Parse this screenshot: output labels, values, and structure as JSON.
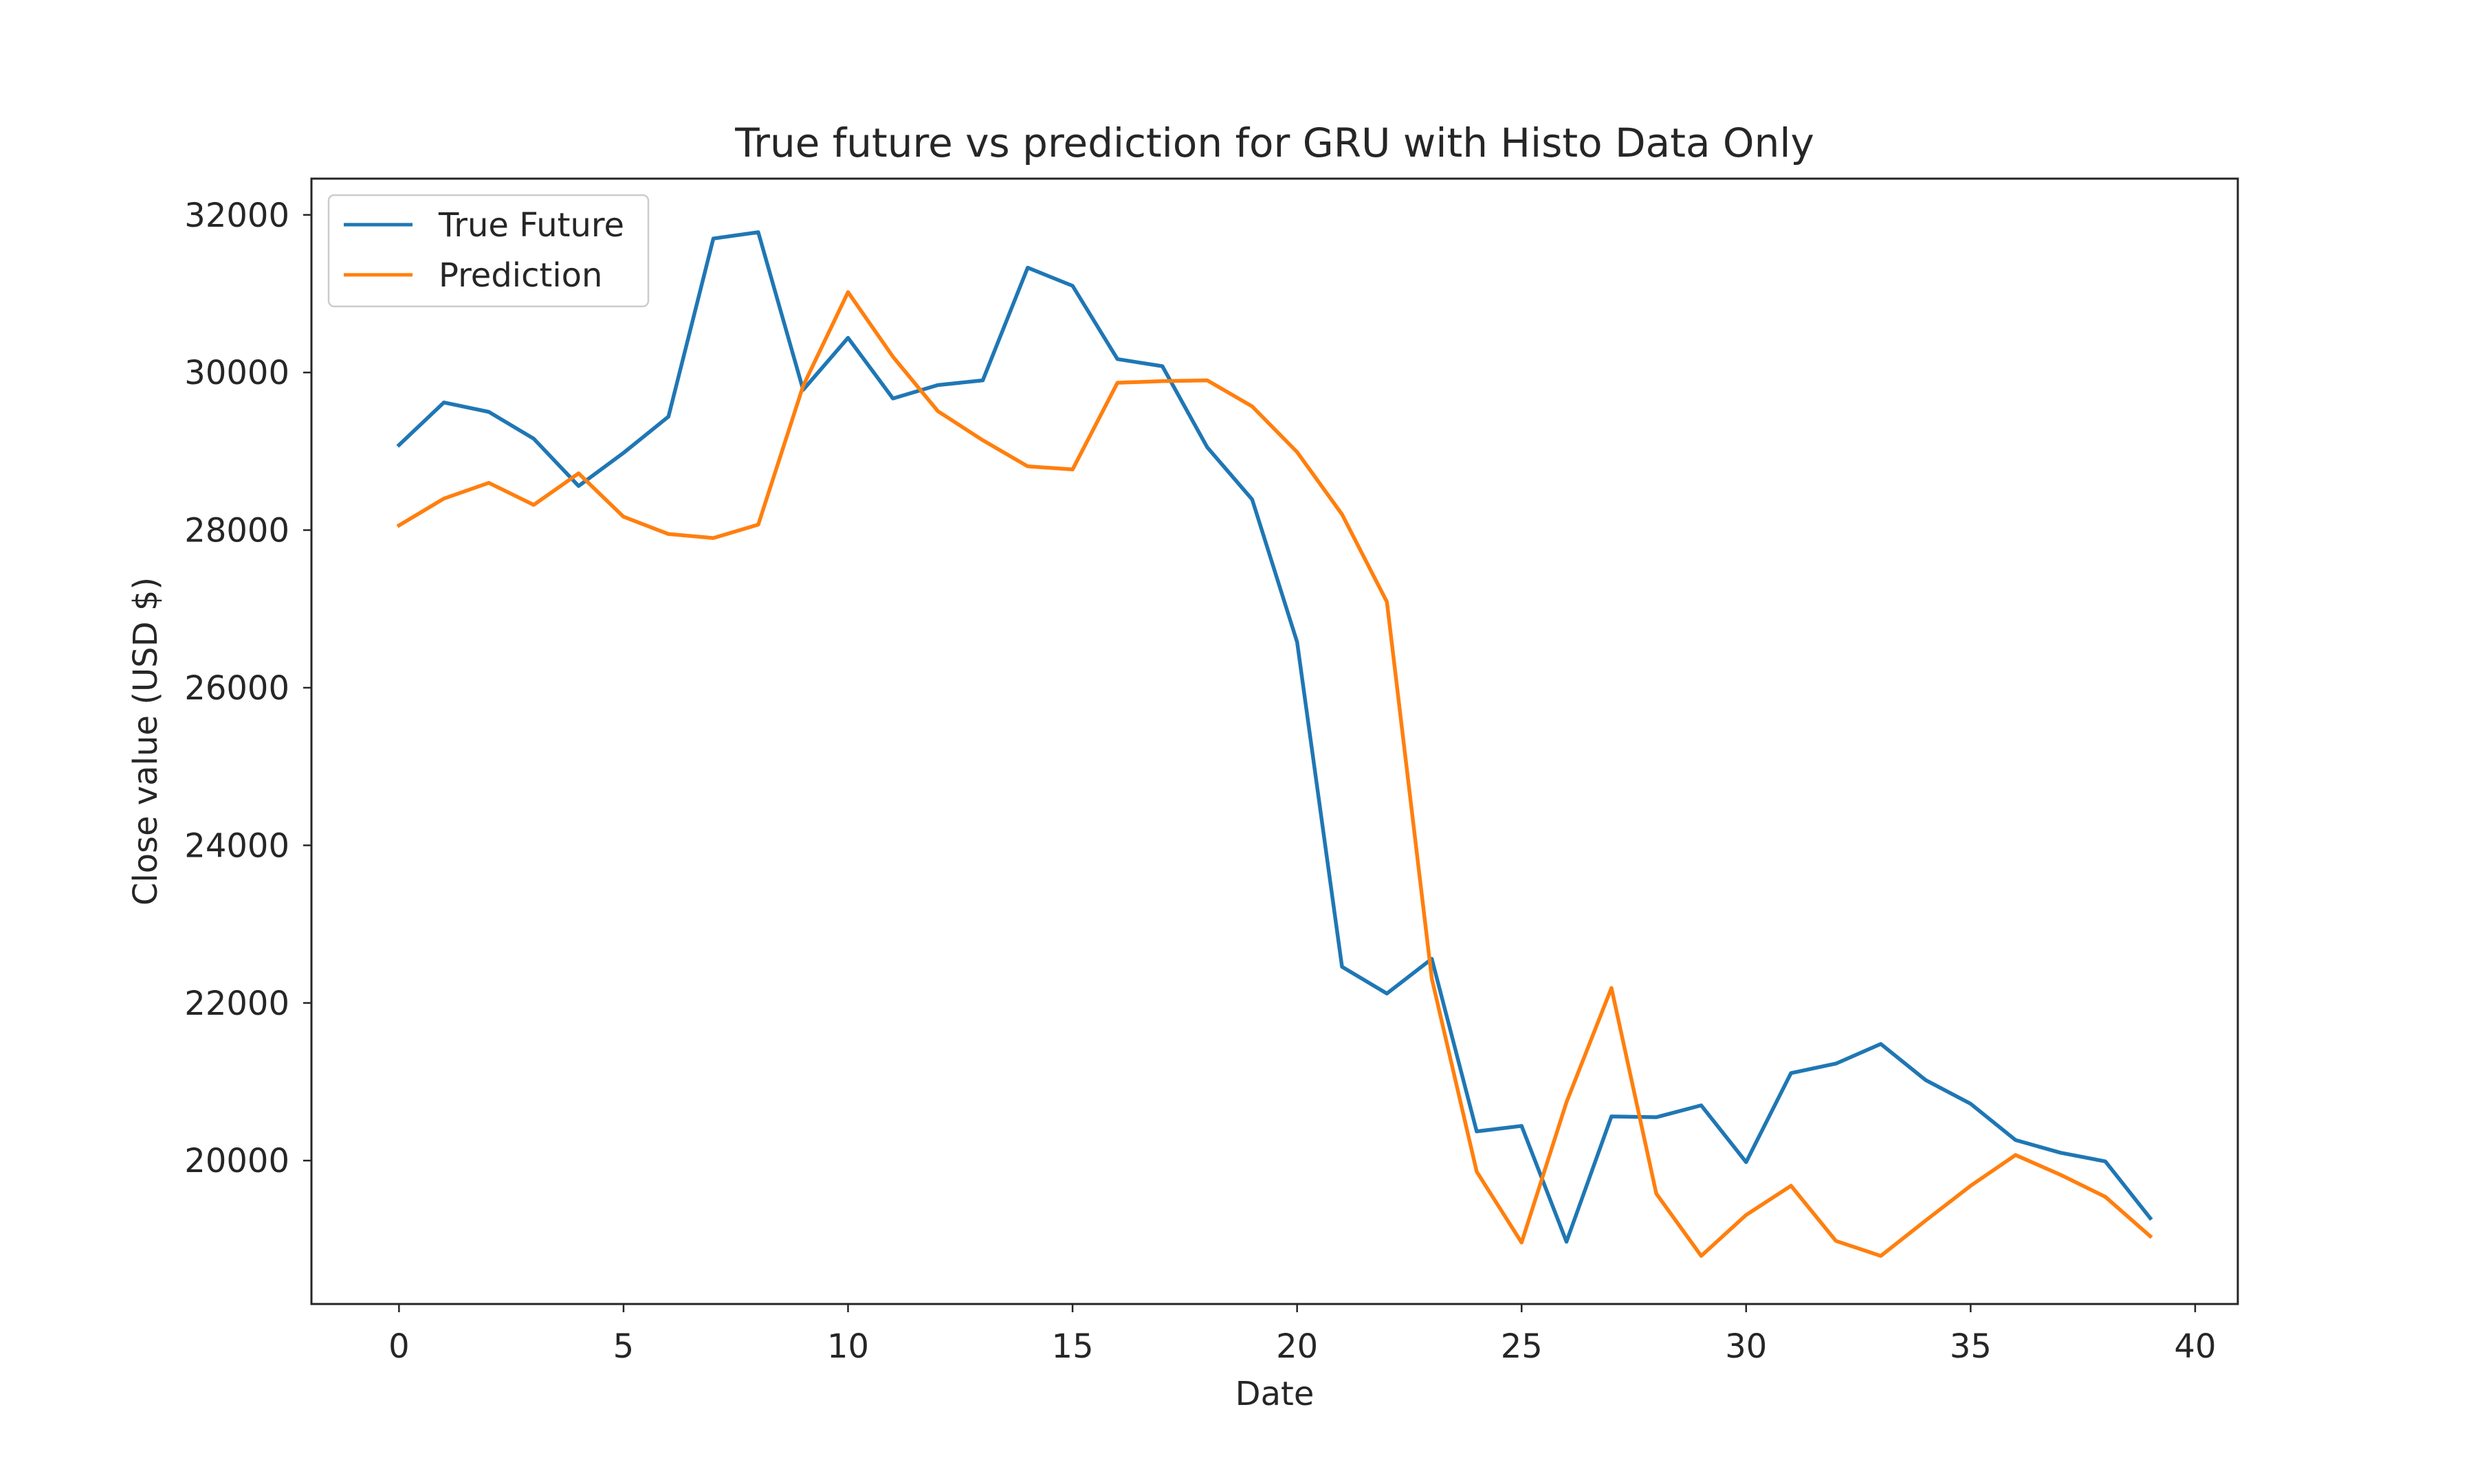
{
  "chart_data": {
    "type": "line",
    "title": "True future vs prediction for GRU with Histo Data Only",
    "xlabel": "Date",
    "ylabel": "Close value (USD $)",
    "xlim": [
      -1.95,
      40.95
    ],
    "ylim": [
      18180,
      32460
    ],
    "xticks": [
      0,
      5,
      10,
      15,
      20,
      25,
      30,
      35,
      40
    ],
    "yticks": [
      20000,
      22000,
      24000,
      26000,
      28000,
      30000,
      32000
    ],
    "grid": false,
    "legend_position": "upper left",
    "x": [
      0,
      1,
      2,
      3,
      4,
      5,
      6,
      7,
      8,
      9,
      10,
      11,
      12,
      13,
      14,
      15,
      16,
      17,
      18,
      19,
      20,
      21,
      22,
      23,
      24,
      25,
      26,
      27,
      28,
      29,
      30,
      31,
      32,
      33,
      34,
      35,
      36,
      37,
      38,
      39
    ],
    "series": [
      {
        "name": "True Future",
        "color": "#1f77b4",
        "values": [
          29080,
          29620,
          29500,
          29160,
          28560,
          28980,
          29440,
          31700,
          31780,
          29780,
          30440,
          29670,
          29840,
          29900,
          31330,
          31100,
          30170,
          30080,
          29050,
          28390,
          26580,
          22460,
          22120,
          22560,
          20370,
          20440,
          18970,
          20560,
          20550,
          20700,
          19980,
          21110,
          21230,
          21480,
          21020,
          20720,
          20260,
          20100,
          19990,
          19270
        ]
      },
      {
        "name": "Prediction",
        "color": "#ff7f0e",
        "values": [
          28060,
          28400,
          28600,
          28320,
          28720,
          28170,
          27950,
          27900,
          28070,
          29830,
          31020,
          30200,
          29510,
          29140,
          28810,
          28770,
          29870,
          29890,
          29900,
          29570,
          28990,
          28200,
          27090,
          22310,
          19860,
          18960,
          20740,
          22190,
          19580,
          18790,
          19310,
          19680,
          18980,
          18790,
          19240,
          19680,
          20070,
          19820,
          19540,
          19040
        ]
      }
    ]
  }
}
